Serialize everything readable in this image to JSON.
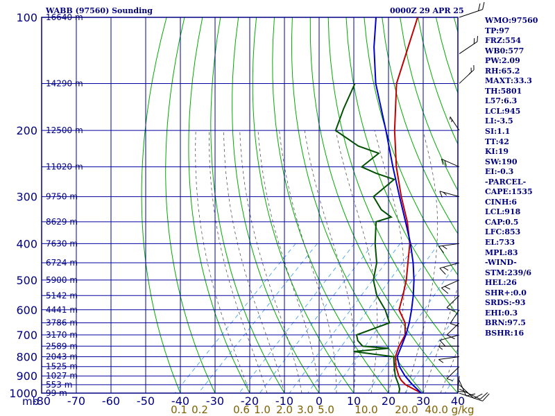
{
  "title": "WABB (97560) Sounding",
  "timestamp": "0000Z 29 APR 25",
  "indices": [
    "WMO:97560",
    "TP:97",
    "FRZ:554",
    "WB0:577",
    "PW:2.09",
    "RH:65.2",
    "MAXT:33.3",
    "TH:5801",
    "L57:6.3",
    "LCL:945",
    "LI:-3.5",
    "SI:1.1",
    "TT:42",
    "KI:19",
    "SW:190",
    "EI:-0.3",
    "-PARCEL-",
    "CAPE:1535",
    "CINH:6",
    "LCL:918",
    "CAP:0.5",
    "LFC:853",
    "EL:733",
    "MPL:83",
    "-WIND-",
    "STM:239/6",
    "HEL:26",
    "SHR+:0.0",
    "SRDS:-93",
    "EHI:0.3",
    "BRN:97.5",
    "BSHR:16"
  ],
  "colors": {
    "frame": "#000080",
    "isobar": "#0000a0",
    "dry_adiabat": "#00aa00",
    "moist_adiabat": "#555555",
    "mixing_ratio": "#3399ff",
    "temperature": "#c00000",
    "dewpoint": "#005000",
    "parcel": "#0000cc",
    "ratio_label": "#806000",
    "wind": "#000000"
  },
  "chart_data": {
    "type": "skew-t",
    "pressure_unit": "mb",
    "pressure_levels": [
      100,
      200,
      300,
      400,
      500,
      600,
      700,
      800,
      900,
      1000
    ],
    "pressure_axis_labels": [
      "100",
      "200",
      "300",
      "400",
      "500",
      "600",
      "700",
      "800",
      "900",
      "1000"
    ],
    "height_labels": [
      {
        "p": 100,
        "label": "16640 m"
      },
      {
        "p": 150,
        "label": "14290 m"
      },
      {
        "p": 200,
        "label": "12500 m"
      },
      {
        "p": 250,
        "label": "11020 m"
      },
      {
        "p": 300,
        "label": "9750 m"
      },
      {
        "p": 350,
        "label": "8629 m"
      },
      {
        "p": 400,
        "label": "7630 m"
      },
      {
        "p": 450,
        "label": "6724 m"
      },
      {
        "p": 500,
        "label": "5900 m"
      },
      {
        "p": 550,
        "label": "5142 m"
      },
      {
        "p": 600,
        "label": "4441 m"
      },
      {
        "p": 650,
        "label": "3786 m"
      },
      {
        "p": 700,
        "label": "3170 m"
      },
      {
        "p": 750,
        "label": "2589 m"
      },
      {
        "p": 800,
        "label": "2043 m"
      },
      {
        "p": 850,
        "label": "1525 m"
      },
      {
        "p": 900,
        "label": "1027 m"
      },
      {
        "p": 950,
        "label": "553 m"
      },
      {
        "p": 1000,
        "label": "99 m"
      }
    ],
    "x_ticks": [
      "-80",
      "-70",
      "-60",
      "-50",
      "-40",
      "-30",
      "-20",
      "-10",
      "0",
      "10",
      "20",
      "30",
      "40"
    ],
    "x_label": "mb",
    "mixing_ratio_labels": [
      "0.1",
      "0.2",
      "0.6",
      "1.0",
      "2.0",
      "3.0",
      "5.0",
      "10.0",
      "20.0",
      "40.0"
    ],
    "mixing_ratio_unit": "g/kg",
    "series": [
      {
        "key": "temperature",
        "points": [
          [
            1000,
            29.5
          ],
          [
            975,
            26
          ],
          [
            950,
            22.5
          ],
          [
            925,
            20
          ],
          [
            900,
            18
          ],
          [
            850,
            14.5
          ],
          [
            800,
            11.5
          ],
          [
            750,
            9.5
          ],
          [
            700,
            8
          ],
          [
            650,
            4.5
          ],
          [
            600,
            -1
          ],
          [
            550,
            -4
          ],
          [
            500,
            -7.5
          ],
          [
            450,
            -12
          ],
          [
            400,
            -17
          ],
          [
            350,
            -24
          ],
          [
            300,
            -33
          ],
          [
            250,
            -43
          ],
          [
            200,
            -54
          ],
          [
            150,
            -67
          ],
          [
            100,
            -80
          ]
        ]
      },
      {
        "key": "dewpoint",
        "points": [
          [
            1000,
            23
          ],
          [
            975,
            22
          ],
          [
            950,
            20.5
          ],
          [
            900,
            17
          ],
          [
            850,
            14
          ],
          [
            800,
            11
          ],
          [
            775,
            -2
          ],
          [
            760,
            7
          ],
          [
            750,
            -1
          ],
          [
            725,
            -4
          ],
          [
            700,
            -6
          ],
          [
            650,
            0
          ],
          [
            600,
            -5
          ],
          [
            550,
            -11.5
          ],
          [
            500,
            -17
          ],
          [
            450,
            -21
          ],
          [
            400,
            -27
          ],
          [
            350,
            -33
          ],
          [
            340,
            -30
          ],
          [
            325,
            -35
          ],
          [
            300,
            -41
          ],
          [
            270,
            -40
          ],
          [
            260,
            -47
          ],
          [
            250,
            -53
          ],
          [
            230,
            -52
          ],
          [
            220,
            -60
          ],
          [
            200,
            -71
          ],
          [
            175,
            -75
          ],
          [
            150,
            -79
          ]
        ]
      },
      {
        "key": "parcel",
        "points": [
          [
            1000,
            29.5
          ],
          [
            950,
            24.5
          ],
          [
            900,
            19.8
          ],
          [
            850,
            15.5
          ],
          [
            800,
            12
          ],
          [
            750,
            10.2
          ],
          [
            700,
            8.2
          ],
          [
            650,
            5.7
          ],
          [
            600,
            2.6
          ],
          [
            550,
            -1
          ],
          [
            500,
            -5.3
          ],
          [
            450,
            -10.5
          ],
          [
            400,
            -16.8
          ],
          [
            350,
            -24.5
          ],
          [
            300,
            -33.5
          ],
          [
            250,
            -44
          ],
          [
            200,
            -56.5
          ],
          [
            150,
            -73
          ],
          [
            120,
            -84
          ],
          [
            100,
            -92
          ]
        ]
      }
    ],
    "wind_barbs": [
      {
        "p": 1000,
        "dir": 120,
        "spd": 10
      },
      {
        "p": 975,
        "dir": 130,
        "spd": 10
      },
      {
        "p": 950,
        "dir": 150,
        "spd": 10
      },
      {
        "p": 925,
        "dir": 170,
        "spd": 10
      },
      {
        "p": 900,
        "dir": 190,
        "spd": 10
      },
      {
        "p": 850,
        "dir": 220,
        "spd": 5
      },
      {
        "p": 800,
        "dir": 260,
        "spd": 5
      },
      {
        "p": 750,
        "dir": 270,
        "spd": 5
      },
      {
        "p": 700,
        "dir": 250,
        "spd": 10
      },
      {
        "p": 650,
        "dir": 220,
        "spd": 10
      },
      {
        "p": 600,
        "dir": 210,
        "spd": 10
      },
      {
        "p": 550,
        "dir": 220,
        "spd": 10
      },
      {
        "p": 500,
        "dir": 240,
        "spd": 15
      },
      {
        "p": 450,
        "dir": 250,
        "spd": 15
      },
      {
        "p": 400,
        "dir": 260,
        "spd": 15
      },
      {
        "p": 300,
        "dir": 290,
        "spd": 15
      },
      {
        "p": 250,
        "dir": 300,
        "spd": 20
      },
      {
        "p": 200,
        "dir": 330,
        "spd": 20
      },
      {
        "p": 150,
        "dir": 30,
        "spd": 25
      },
      {
        "p": 125,
        "dir": 40,
        "spd": 20
      },
      {
        "p": 100,
        "dir": 60,
        "spd": 20
      }
    ]
  }
}
